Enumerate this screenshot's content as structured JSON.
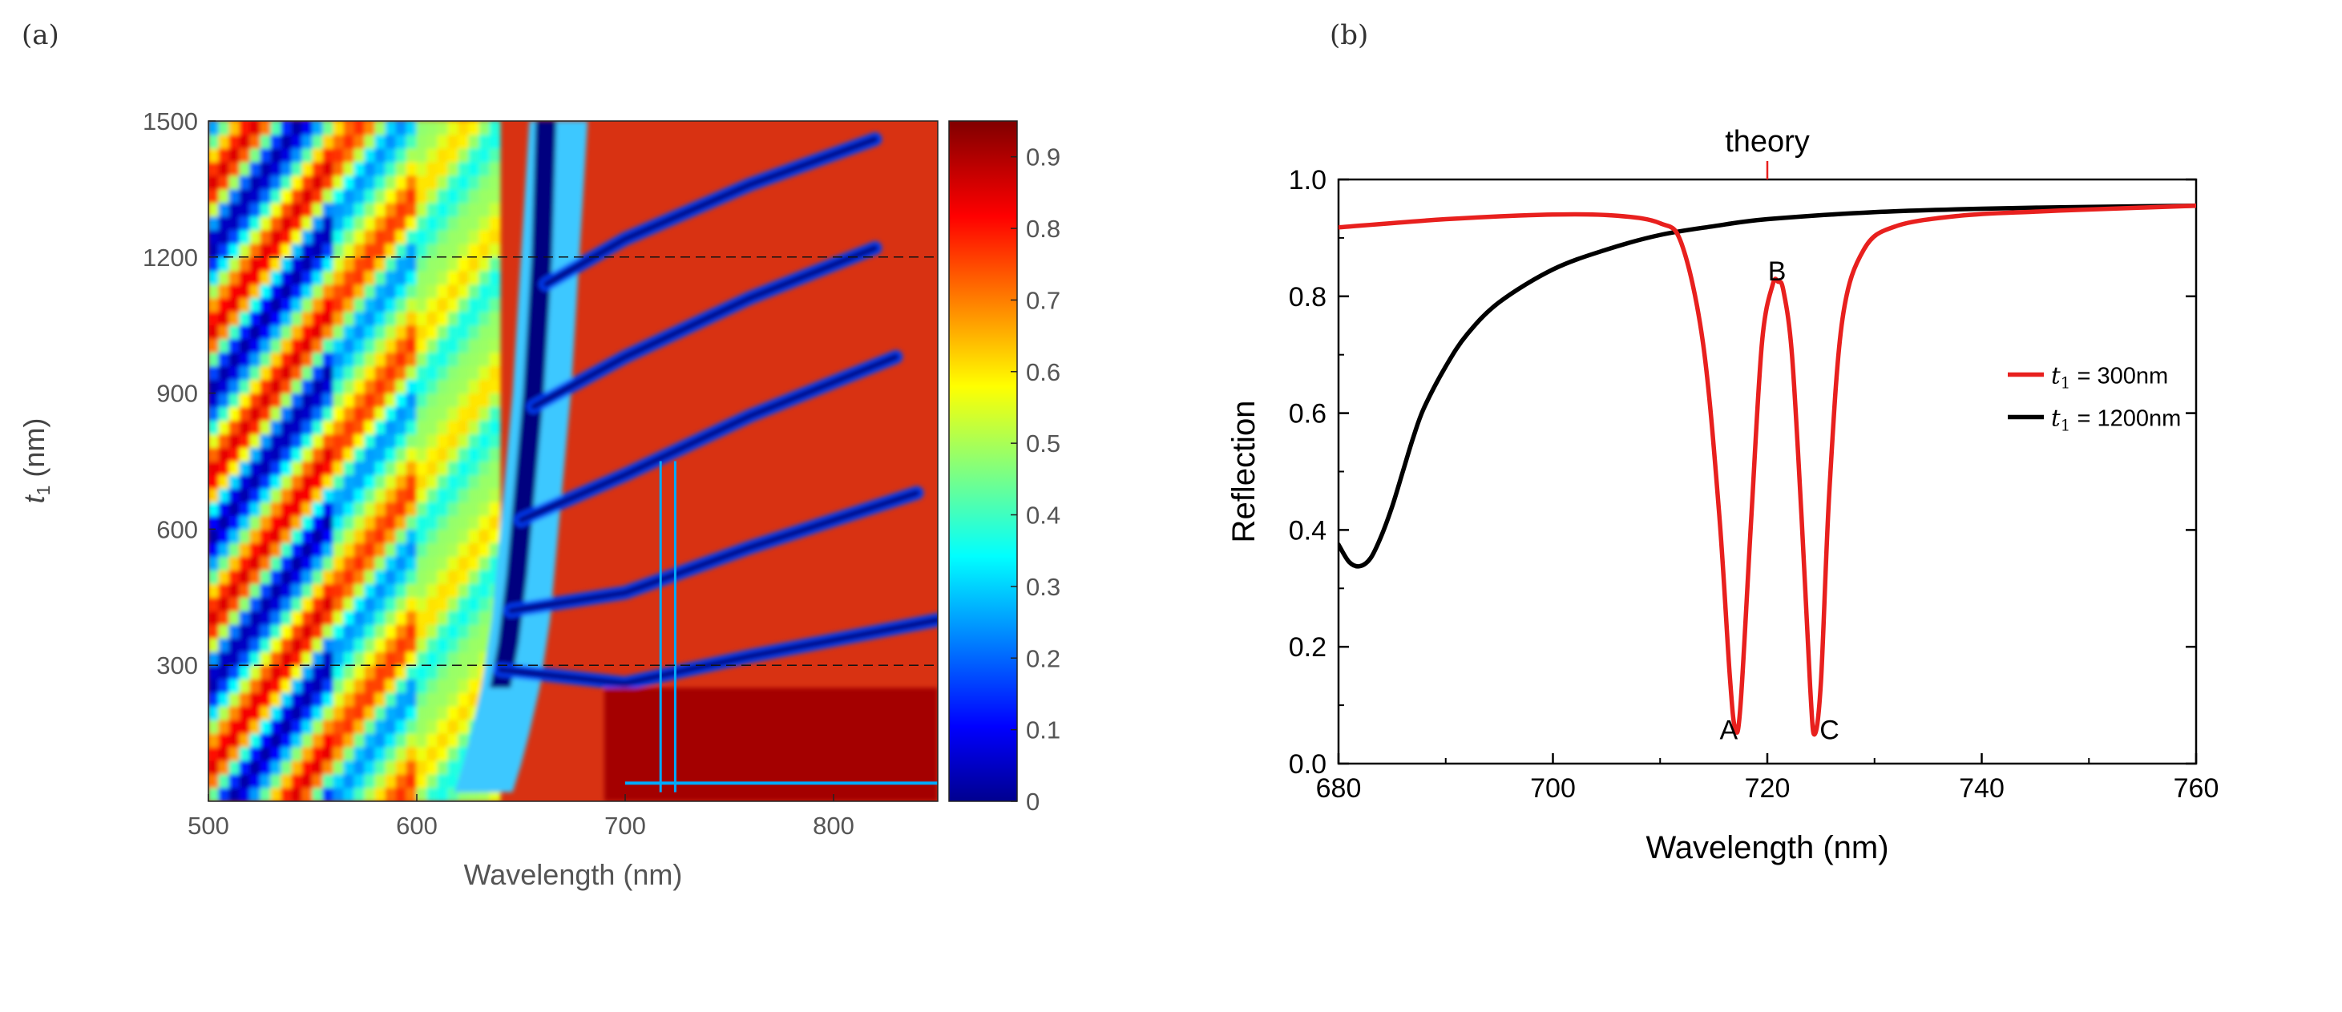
{
  "chart_data": [
    {
      "panel_label": "(a)",
      "type": "heatmap",
      "description_quantity": "Reflection",
      "xlabel": "Wavelength (nm)",
      "ylabel_symbol": "t",
      "ylabel_sub": "1",
      "ylabel_unit": " (nm)",
      "xlim": [
        500,
        850
      ],
      "ylim": [
        0,
        1500
      ],
      "xticks": [
        500,
        600,
        700,
        800
      ],
      "yticks": [
        300,
        600,
        900,
        1200,
        1500
      ],
      "dashed_lines_y": [
        300,
        1200
      ],
      "colorbar": {
        "range": [
          0,
          0.95
        ],
        "ticks": [
          "0",
          "0.1",
          "0.2",
          "0.3",
          "0.4",
          "0.5",
          "0.6",
          "0.7",
          "0.8",
          "0.9"
        ],
        "colormap": "jet"
      },
      "features": {
        "main_dip_x": [
          645,
          668
        ],
        "fine_dips_x": [
          717,
          724
        ],
        "fine_dips_y_range": [
          20,
          750
        ],
        "fringe_slope_note": "Fabry-Perot fringes rising with thickness"
      }
    },
    {
      "panel_label": "(b)",
      "type": "line",
      "xlabel": "Wavelength (nm)",
      "ylabel": "Reflection",
      "xlim": [
        680,
        760
      ],
      "ylim": [
        0.0,
        1.0
      ],
      "xticks": [
        680,
        700,
        720,
        740,
        760
      ],
      "yticks": [
        "0.0",
        "0.2",
        "0.4",
        "0.6",
        "0.8",
        "1.0"
      ],
      "theory_marker": {
        "label": "theory",
        "x": 720
      },
      "legend_position": "center-right",
      "series": [
        {
          "name": "t1 = 300nm",
          "legend_symbol": "t",
          "legend_sub": "1",
          "legend_text": " = 300nm",
          "color": "#e8201e",
          "x": [
            680,
            690,
            700,
            706,
            710,
            712,
            714,
            715.5,
            716.5,
            717.0,
            717.5,
            718.5,
            719.5,
            720.5,
            721.0,
            721.5,
            722.3,
            723.2,
            724.0,
            724.4,
            725.0,
            725.8,
            727.0,
            729.0,
            732.0,
            738.0,
            745.0,
            752.0,
            760.0
          ],
          "y": [
            0.918,
            0.932,
            0.94,
            0.938,
            0.925,
            0.89,
            0.72,
            0.43,
            0.15,
            0.06,
            0.1,
            0.42,
            0.72,
            0.82,
            0.825,
            0.81,
            0.7,
            0.42,
            0.13,
            0.05,
            0.14,
            0.47,
            0.76,
            0.88,
            0.92,
            0.938,
            0.945,
            0.95,
            0.955
          ]
        },
        {
          "name": "t1 = 1200nm",
          "legend_symbol": "t",
          "legend_sub": "1",
          "legend_text": " = 1200nm",
          "color": "#000000",
          "x": [
            680,
            681,
            682,
            683,
            684,
            685,
            686,
            687,
            688,
            690,
            692,
            695,
            700,
            705,
            710,
            715,
            720,
            730,
            740,
            750,
            760
          ],
          "y": [
            0.375,
            0.345,
            0.338,
            0.352,
            0.39,
            0.44,
            0.5,
            0.56,
            0.61,
            0.68,
            0.735,
            0.79,
            0.846,
            0.88,
            0.905,
            0.92,
            0.932,
            0.944,
            0.95,
            0.953,
            0.955
          ]
        }
      ],
      "annotations": [
        {
          "text": "A",
          "x": 716.4,
          "y": 0.06
        },
        {
          "text": "B",
          "x": 720.9,
          "y": 0.845
        },
        {
          "text": "C",
          "x": 725.8,
          "y": 0.06
        }
      ]
    }
  ]
}
